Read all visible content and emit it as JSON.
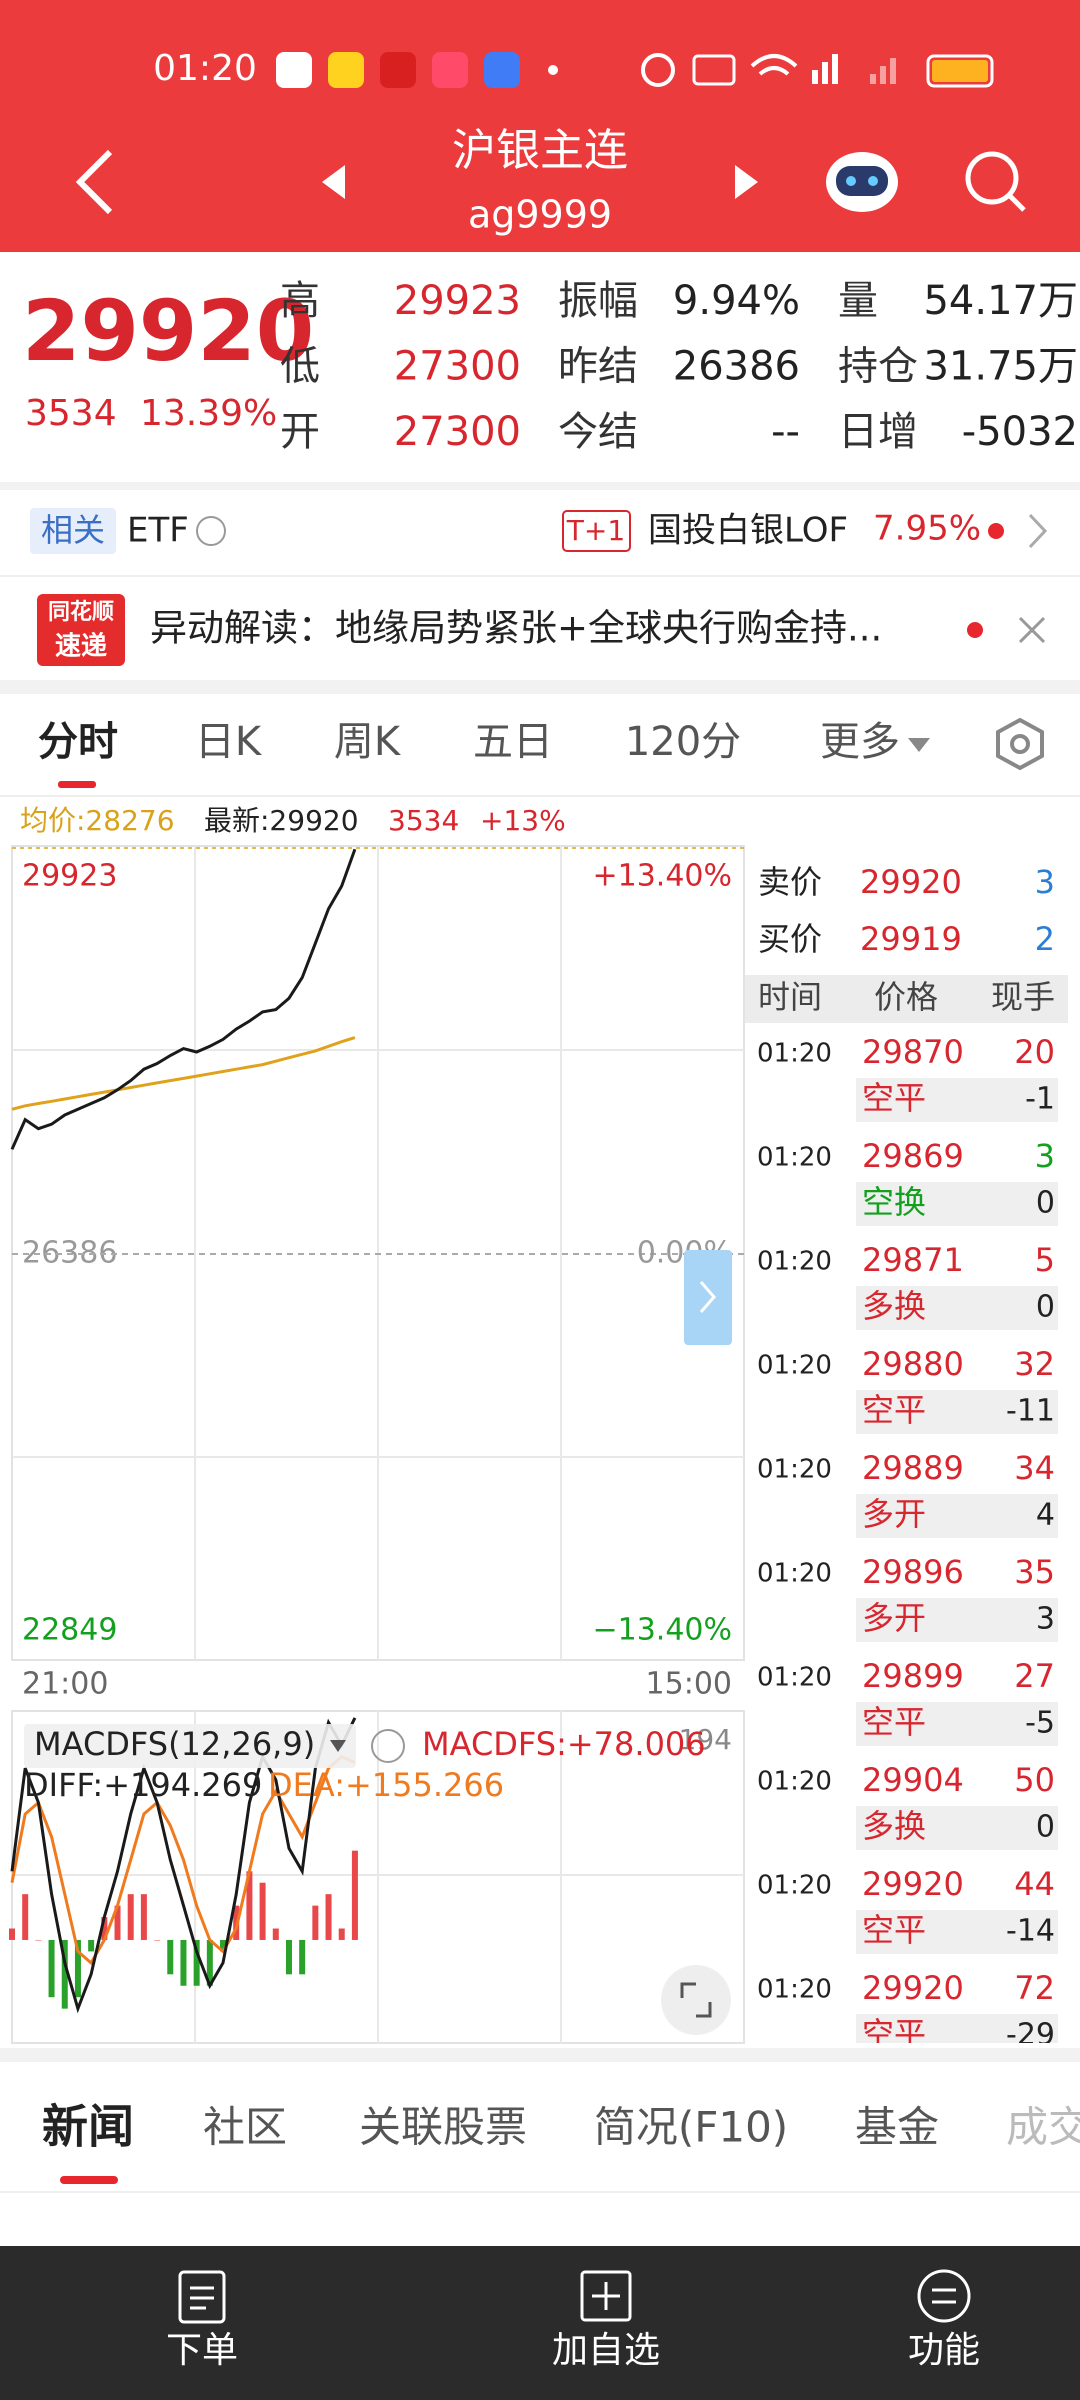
{
  "status_bar": {
    "time": "01:20"
  },
  "header": {
    "title": "沪银主连",
    "code": "ag9999"
  },
  "quote": {
    "price": "29920",
    "change": "3534",
    "change_pct": "13.39%",
    "stats": [
      [
        "高",
        "29923",
        "振幅",
        "9.94%",
        "量",
        "54.17万"
      ],
      [
        "低",
        "27300",
        "昨结",
        "26386",
        "持仓",
        "31.75万"
      ],
      [
        "开",
        "27300",
        "今结",
        "--",
        "日增",
        "-5032"
      ]
    ]
  },
  "etf": {
    "tag": "相关",
    "label": "ETF",
    "badge": "T+1",
    "name": "国投白银LOF",
    "change": "7.95%"
  },
  "news_banner": {
    "logo": [
      "同花顺",
      "速递"
    ],
    "text": "异动解读：地缘局势紧张+全球央行购金持..."
  },
  "chart_tabs": [
    "分时",
    "日K",
    "周K",
    "五日",
    "120分",
    "更多"
  ],
  "chart_info": {
    "avg": "均价:28276",
    "latest": "最新:29920",
    "change": "3534",
    "change_pct": "+13%"
  },
  "chart_data": [
    {
      "type": "line",
      "x": [
        0,
        10,
        20,
        30,
        40,
        50,
        60,
        70,
        80,
        90,
        100,
        110,
        120,
        130,
        140,
        150,
        160,
        170,
        180,
        190,
        200,
        210,
        220,
        230,
        240,
        250,
        260
      ],
      "xlim": [
        0,
        555
      ],
      "xticks": [
        {
          "value": 0,
          "label": "21:00"
        },
        {
          "value": 555,
          "label": "15:00"
        }
      ],
      "ylim": [
        22849,
        29923
      ],
      "yticks": [
        29923,
        26386,
        22849
      ],
      "y2lim": [
        -13.4,
        13.4
      ],
      "y2ticks": [
        {
          "value": 13.4,
          "label": "+13.40%"
        },
        {
          "value": 0,
          "label": "0.00%"
        },
        {
          "value": -13.4,
          "label": "−13.40%"
        }
      ],
      "series": [
        {
          "color": "#1a1a1a",
          "values": [
            27300,
            27560,
            27480,
            27520,
            27600,
            27650,
            27700,
            27750,
            27820,
            27900,
            28000,
            28050,
            28120,
            28180,
            28150,
            28200,
            28260,
            28350,
            28420,
            28500,
            28520,
            28620,
            28800,
            29100,
            29400,
            29600,
            29920
          ]
        },
        {
          "color": "#e0a21c",
          "values": [
            27650,
            27680,
            27700,
            27720,
            27740,
            27760,
            27780,
            27800,
            27820,
            27840,
            27860,
            27880,
            27900,
            27920,
            27940,
            27960,
            27980,
            28000,
            28020,
            28040,
            28070,
            28100,
            28130,
            28160,
            28200,
            28240,
            28276
          ]
        }
      ]
    },
    {
      "type": "macd",
      "title": "MACDFS(12,26,9)",
      "label": "MACDFS:+78.006",
      "diff_label": "DIFF:+194.269",
      "dea_label": "DEA:+155.266",
      "corner_label": "194",
      "x": [
        0,
        10,
        20,
        30,
        40,
        50,
        60,
        70,
        80,
        90,
        100,
        110,
        120,
        130,
        140,
        150,
        160,
        170,
        180,
        190,
        200,
        210,
        220,
        230,
        240,
        250,
        260
      ],
      "xlim": [
        0,
        555
      ],
      "ylim": [
        -90,
        200
      ],
      "series": [
        {
          "name": "DIFF",
          "color": "#1a1a1a",
          "values": [
            60,
            150,
            120,
            40,
            -20,
            -60,
            -30,
            20,
            60,
            110,
            150,
            120,
            70,
            30,
            -10,
            -40,
            -20,
            40,
            120,
            160,
            140,
            80,
            60,
            150,
            190,
            170,
            194
          ]
        },
        {
          "name": "DEA",
          "color": "#f07a1e",
          "values": [
            50,
            110,
            120,
            90,
            40,
            -10,
            -20,
            0,
            30,
            70,
            110,
            120,
            100,
            70,
            30,
            0,
            -10,
            10,
            60,
            110,
            130,
            110,
            90,
            120,
            150,
            160,
            155
          ]
        }
      ],
      "histogram": {
        "up_color": "#e8484a",
        "down_color": "#2aa12a",
        "values": [
          10,
          40,
          0,
          -50,
          -60,
          -50,
          -10,
          20,
          30,
          40,
          40,
          0,
          -30,
          -40,
          -40,
          -40,
          -10,
          30,
          60,
          50,
          10,
          -30,
          -30,
          30,
          40,
          10,
          78
        ]
      }
    }
  ],
  "order_book": {
    "ask_label": "卖价",
    "ask_price": "29920",
    "ask_volume": "3",
    "bid_label": "买价",
    "bid_price": "29919",
    "bid_volume": "2",
    "columns": [
      "时间",
      "价格",
      "现手"
    ],
    "trades": [
      {
        "time": "01:20",
        "price": "29870",
        "volume": "20",
        "volume_color": "#d7262e",
        "type": "空平",
        "type_color": "#d7262e",
        "change": "-1"
      },
      {
        "time": "01:20",
        "price": "29869",
        "volume": "3",
        "volume_color": "#14a01f",
        "type": "空换",
        "type_color": "#14a01f",
        "change": "0"
      },
      {
        "time": "01:20",
        "price": "29871",
        "volume": "5",
        "volume_color": "#d7262e",
        "type": "多换",
        "type_color": "#d7262e",
        "change": "0"
      },
      {
        "time": "01:20",
        "price": "29880",
        "volume": "32",
        "volume_color": "#d7262e",
        "type": "空平",
        "type_color": "#d7262e",
        "change": "-11"
      },
      {
        "time": "01:20",
        "price": "29889",
        "volume": "34",
        "volume_color": "#d7262e",
        "type": "多开",
        "type_color": "#d7262e",
        "change": "4"
      },
      {
        "time": "01:20",
        "price": "29896",
        "volume": "35",
        "volume_color": "#d7262e",
        "type": "多开",
        "type_color": "#d7262e",
        "change": "3"
      },
      {
        "time": "01:20",
        "price": "29899",
        "volume": "27",
        "volume_color": "#d7262e",
        "type": "空平",
        "type_color": "#d7262e",
        "change": "-5"
      },
      {
        "time": "01:20",
        "price": "29904",
        "volume": "50",
        "volume_color": "#d7262e",
        "type": "多换",
        "type_color": "#d7262e",
        "change": "0"
      },
      {
        "time": "01:20",
        "price": "29920",
        "volume": "44",
        "volume_color": "#d7262e",
        "type": "空平",
        "type_color": "#d7262e",
        "change": "-14"
      },
      {
        "time": "01:20",
        "price": "29920",
        "volume": "72",
        "volume_color": "#d7262e",
        "type": "空平",
        "type_color": "#d7262e",
        "change": "-29"
      }
    ]
  },
  "bottom_tabs": [
    "新闻",
    "社区",
    "关联股票",
    "简况(F10)",
    "基金",
    "成交"
  ],
  "bottom_nav": [
    "下单",
    "加自选",
    "功能"
  ]
}
